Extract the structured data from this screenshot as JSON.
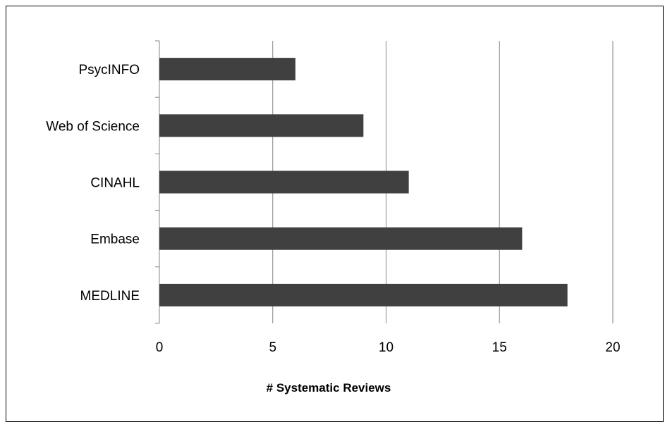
{
  "chart_data": {
    "type": "bar",
    "orientation": "horizontal",
    "categories": [
      "PsycINFO",
      "Web of Science",
      "CINAHL",
      "Embase",
      "MEDLINE"
    ],
    "values": [
      6,
      9,
      11,
      16,
      18
    ],
    "title": "",
    "xlabel": "# Systematic Reviews",
    "ylabel": "",
    "xlim": [
      0,
      20
    ],
    "xticks": [
      "0",
      "5",
      "10",
      "15",
      "20"
    ],
    "grid": "vertical major gridlines",
    "legend": "none",
    "bar_color": "#404040",
    "grid_color": "#868686"
  }
}
